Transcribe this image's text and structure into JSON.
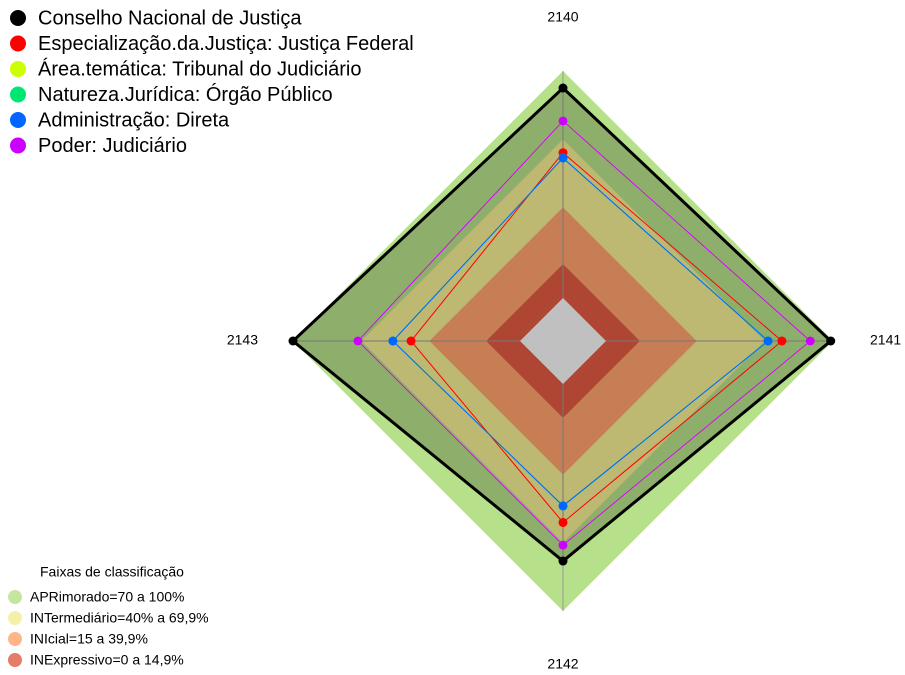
{
  "chart_data": {
    "type": "radar",
    "axes": [
      "2140",
      "2141",
      "2142",
      "2143"
    ],
    "rlim": [
      0,
      100
    ],
    "series": [
      {
        "name": "Conselho Nacional de Justiça",
        "color": "#000000",
        "values": [
          92.5,
          99,
          78,
          100
        ]
      },
      {
        "name": "Especialização.da.Justiça: Justiça Federal",
        "color": "#ff0000",
        "values": [
          64,
          77.5,
          61,
          48
        ]
      },
      {
        "name": "Área.temática: Tribunal do Judiciário",
        "color": "#ccff00",
        "values": [
          78,
          90,
          71,
          71.4
        ]
      },
      {
        "name": "Natureza.Jurídica: Órgão Público",
        "color": "#00e673",
        "values": [
          61.7,
          71.4,
          53.7,
          56
        ]
      },
      {
        "name": "Administração: Direta",
        "color": "#0066ff",
        "values": [
          61.7,
          71.4,
          53.7,
          56
        ]
      },
      {
        "name": "Poder: Judiciário",
        "color": "#cc00ff",
        "values": [
          78,
          90,
          71,
          71.4
        ]
      }
    ],
    "bands_title": "Faixas de classificação",
    "bands": [
      {
        "label": "APRimorado=70 a 100%",
        "from": 70,
        "to": 100,
        "color": "#b6e08a"
      },
      {
        "label": "INTermediário=40% a 69,9%",
        "from": 40,
        "to": 69.9,
        "color": "#f2ec92"
      },
      {
        "label": "INIcial=15 a 39,9%",
        "from": 15,
        "to": 39.9,
        "color": "#ffa26c"
      },
      {
        "label": "INExpressivo=0 a 14,9%",
        "from": 0,
        "to": 14.9,
        "color": "#e05a42"
      }
    ]
  }
}
